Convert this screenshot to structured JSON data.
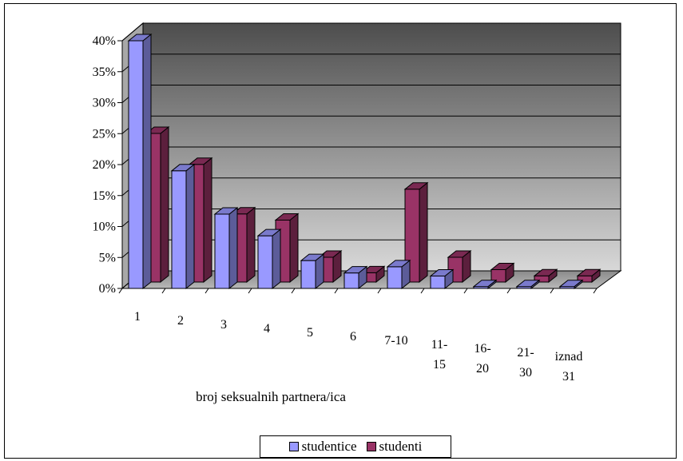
{
  "chart_data": {
    "type": "bar",
    "subtype": "3d-clustered-column",
    "xlabel": "broj seksualnih partnera/ica",
    "categories": [
      [
        "1"
      ],
      [
        "2"
      ],
      [
        "3"
      ],
      [
        "4"
      ],
      [
        "5"
      ],
      [
        "6"
      ],
      [
        "7-10"
      ],
      [
        "11-",
        "15"
      ],
      [
        "16-",
        "20"
      ],
      [
        "21-",
        "30"
      ],
      [
        "iznad",
        "31"
      ]
    ],
    "y_ticks": [
      "0%",
      "5%",
      "10%",
      "15%",
      "20%",
      "25%",
      "30%",
      "35%",
      "40%"
    ],
    "ylim": [
      0,
      40
    ],
    "y_unit": "%",
    "grid": true,
    "legend_position": "bottom",
    "series": [
      {
        "name": "studentice",
        "color": "#9999ff",
        "values": [
          40,
          19,
          12,
          8.5,
          4.5,
          2.5,
          3.5,
          2,
          0.3,
          0.3,
          0.3
        ]
      },
      {
        "name": "studenti",
        "color": "#993366",
        "values": [
          24,
          19,
          11,
          10,
          4,
          1.5,
          15,
          4,
          2,
          1,
          1
        ]
      }
    ]
  }
}
